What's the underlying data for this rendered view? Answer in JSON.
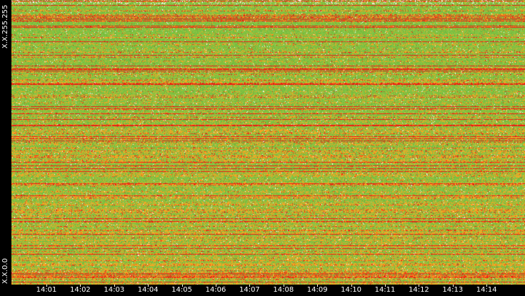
{
  "chart_data": {
    "type": "heatmap",
    "title": "",
    "xlabel": "",
    "ylabel": "",
    "y_axis_labels": {
      "top": "X.X.255.255",
      "bottom": "X.X.0.0"
    },
    "x_tick_labels": [
      "14:01",
      "14:02",
      "14:03",
      "14:04",
      "14:05",
      "14:06",
      "14:07",
      "14:08",
      "14:09",
      "14:10",
      "14:11",
      "14:12",
      "14:13",
      "14:14"
    ],
    "color_scale": [
      "#ffffff",
      "#7fc241",
      "#f5a623",
      "#ee1b12"
    ],
    "grid": false,
    "legend": "none"
  }
}
